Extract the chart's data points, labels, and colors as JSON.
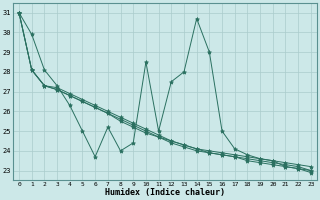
{
  "xlabel": "Humidex (Indice chaleur)",
  "bg_color": "#cce8e8",
  "grid_color": "#aacccc",
  "line_color": "#2a7060",
  "xlim": [
    -0.5,
    23.5
  ],
  "ylim": [
    22.5,
    31.5
  ],
  "yticks": [
    23,
    24,
    25,
    26,
    27,
    28,
    29,
    30,
    31
  ],
  "xticks": [
    0,
    1,
    2,
    3,
    4,
    5,
    6,
    7,
    8,
    9,
    10,
    11,
    12,
    13,
    14,
    15,
    16,
    17,
    18,
    19,
    20,
    21,
    22,
    23
  ],
  "series": [
    [
      31.0,
      29.9,
      28.1,
      27.3,
      26.3,
      25.0,
      23.7,
      25.2,
      24.0,
      24.4,
      28.5,
      25.0,
      27.5,
      28.0,
      30.7,
      29.0,
      25.0,
      24.1,
      23.8,
      23.6,
      23.5,
      23.2,
      23.1,
      22.9
    ],
    [
      31.0,
      28.1,
      27.3,
      27.1,
      26.8,
      26.5,
      26.2,
      25.9,
      25.6,
      25.3,
      25.0,
      24.7,
      24.4,
      24.2,
      24.0,
      23.9,
      23.8,
      23.7,
      23.6,
      23.5,
      23.4,
      23.3,
      23.2,
      23.0
    ],
    [
      31.0,
      28.1,
      27.3,
      27.1,
      26.8,
      26.5,
      26.2,
      25.9,
      25.5,
      25.2,
      24.9,
      24.7,
      24.5,
      24.3,
      24.1,
      23.9,
      23.8,
      23.7,
      23.5,
      23.4,
      23.3,
      23.2,
      23.1,
      23.0
    ],
    [
      31.0,
      28.1,
      27.3,
      27.2,
      26.9,
      26.6,
      26.3,
      26.0,
      25.7,
      25.4,
      25.1,
      24.8,
      24.5,
      24.3,
      24.1,
      24.0,
      23.9,
      23.8,
      23.7,
      23.6,
      23.5,
      23.4,
      23.3,
      23.2
    ]
  ]
}
